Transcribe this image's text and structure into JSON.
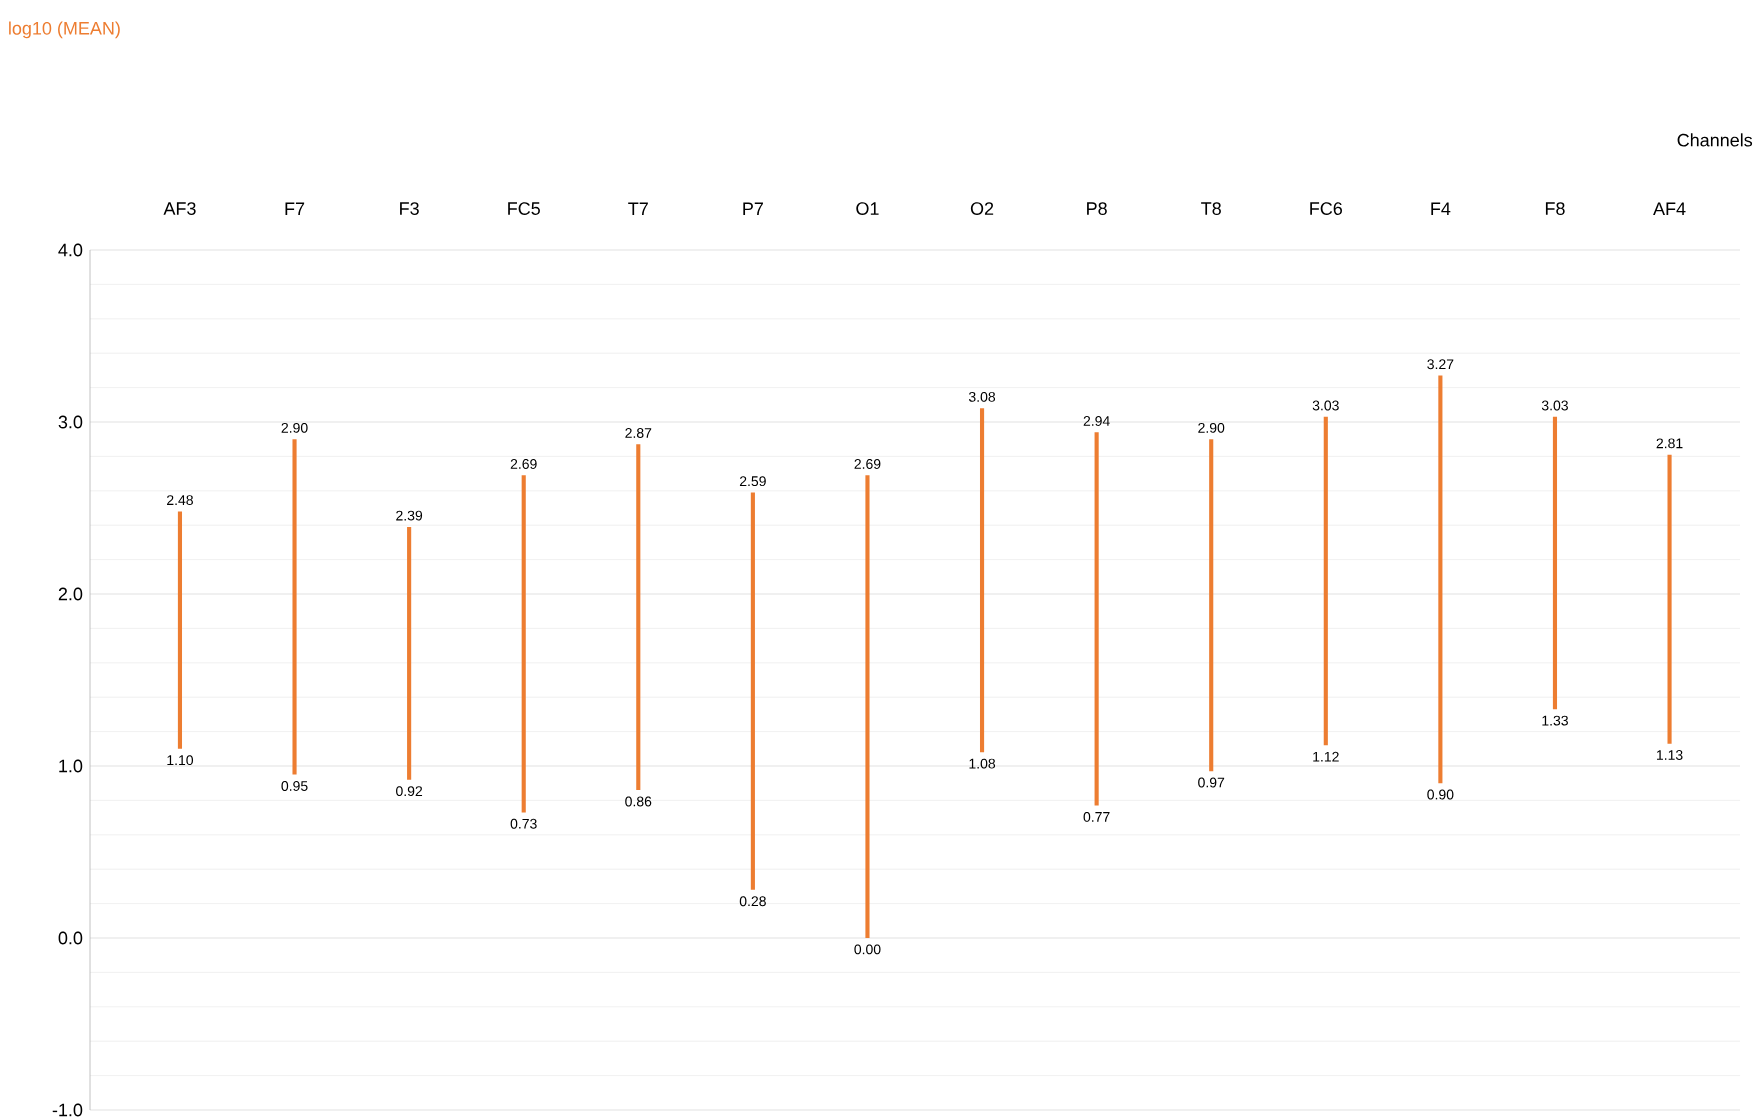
{
  "chart_data": {
    "type": "bar",
    "xlabel": "Channels",
    "categories": [
      "AF3",
      "F7",
      "F3",
      "FC5",
      "T7",
      "P7",
      "O1",
      "O2",
      "P8",
      "T8",
      "FC6",
      "F4",
      "F8",
      "AF4"
    ],
    "base": [
      1.1,
      0.95,
      0.92,
      0.73,
      0.86,
      0.28,
      0.0,
      1.08,
      0.77,
      0.97,
      1.12,
      0.9,
      1.33,
      1.13
    ],
    "values": [
      1.38,
      1.95,
      1.47,
      1.96,
      2.01,
      2.31,
      2.69,
      2.0,
      2.17,
      1.93,
      1.91,
      2.37,
      1.7,
      1.68
    ],
    "color": "#ed7d31",
    "ylim": [
      -1,
      4
    ],
    "yticks": [
      {
        "value": -1,
        "label": "-1.0"
      },
      {
        "value": 0,
        "label": "0.0"
      },
      {
        "value": 1,
        "label": "1.0"
      },
      {
        "value": 2,
        "label": "2.0"
      },
      {
        "value": 3,
        "label": "3.0"
      },
      {
        "value": 4,
        "label": "4.0"
      }
    ],
    "grid": "y",
    "annotations": [
      "log10 (MEAN)",
      {
        "text": "2.48",
        "x": "AF3",
        "y": 2.48
      },
      {
        "text": "1.10",
        "x": "AF3",
        "y": 1.1
      },
      {
        "text": "2.90",
        "x": "F7",
        "y": 2.9
      },
      {
        "text": "0.95",
        "x": "F7",
        "y": 0.95
      },
      {
        "text": "2.39",
        "x": "F3",
        "y": 2.39
      },
      {
        "text": "0.92",
        "x": "F3",
        "y": 0.92
      },
      {
        "text": "2.69",
        "x": "FC5",
        "y": 2.69
      },
      {
        "text": "0.73",
        "x": "FC5",
        "y": 0.73
      },
      {
        "text": "2.87",
        "x": "T7",
        "y": 2.87
      },
      {
        "text": "0.86",
        "x": "T7",
        "y": 0.86
      },
      {
        "text": "2.59",
        "x": "P7",
        "y": 2.59
      },
      {
        "text": "0.28",
        "x": "P7",
        "y": 0.28
      },
      {
        "text": "2.69",
        "x": "O1",
        "y": 2.69
      },
      {
        "text": "0.00",
        "x": "O1",
        "y": 0.0
      },
      {
        "text": "3.08",
        "x": "O2",
        "y": 3.08
      },
      {
        "text": "1.08",
        "x": "O2",
        "y": 1.08
      },
      {
        "text": "2.94",
        "x": "P8",
        "y": 2.94
      },
      {
        "text": "0.77",
        "x": "P8",
        "y": 0.77
      },
      {
        "text": "2.90",
        "x": "T8",
        "y": 2.9
      },
      {
        "text": "0.97",
        "x": "T8",
        "y": 0.97
      },
      {
        "text": "3.03",
        "x": "FC6",
        "y": 3.03
      },
      {
        "text": "1.12",
        "x": "FC6",
        "y": 1.12
      },
      {
        "text": "3.27",
        "x": "F4",
        "y": 3.27
      },
      {
        "text": "0.90",
        "x": "F4",
        "y": 0.9
      },
      {
        "text": "3.03",
        "x": "F8",
        "y": 3.03
      },
      {
        "text": "1.33",
        "x": "F8",
        "y": 1.33
      },
      {
        "text": "2.81",
        "x": "AF4",
        "y": 2.81
      },
      {
        "text": "1.13",
        "x": "AF4",
        "y": 1.13
      }
    ]
  }
}
